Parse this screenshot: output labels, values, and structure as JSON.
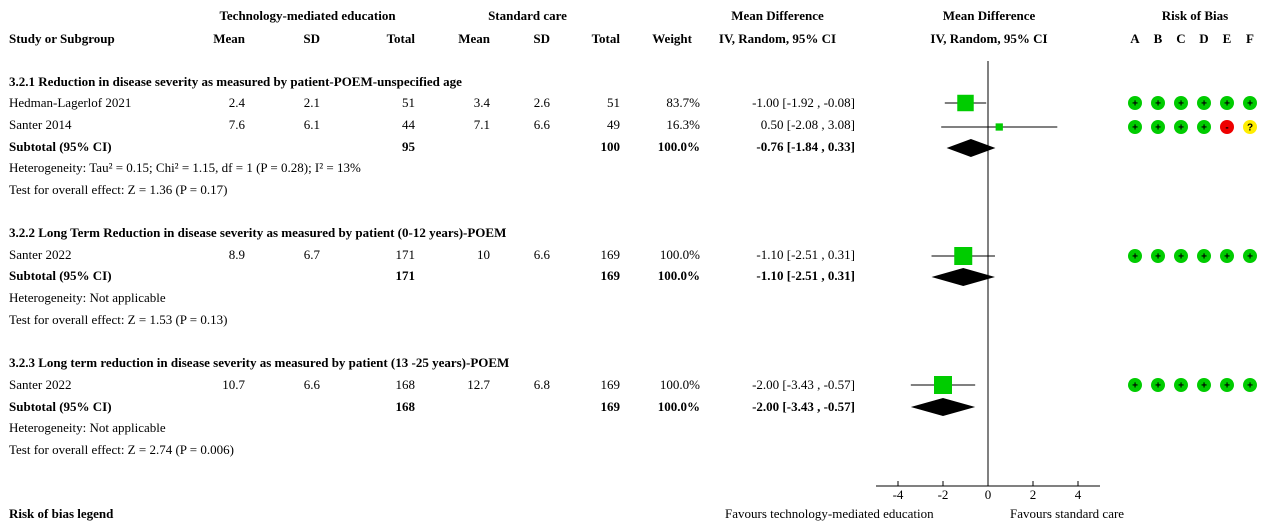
{
  "headers": {
    "study": "Study or Subgroup",
    "group1": "Technology-mediated education",
    "group2": "Standard care",
    "mean": "Mean",
    "sd": "SD",
    "total": "Total",
    "weight": "Weight",
    "md_title": "Mean Difference",
    "md_method": "IV, Random, 95% CI",
    "plot_title": "Mean Difference",
    "plot_method": "IV, Random, 95% CI",
    "rob_title": "Risk of Bias",
    "rob_letters": [
      "A",
      "B",
      "C",
      "D",
      "E",
      "F"
    ]
  },
  "subgroups": [
    {
      "title": "3.2.1 Reduction in disease severity as measured by patient-POEM-unspecified age",
      "studies": [
        {
          "name": "Hedman-Lagerlof 2021",
          "m1": "2.4",
          "sd1": "2.1",
          "n1": "51",
          "m2": "3.4",
          "sd2": "2.6",
          "n2": "51",
          "weight": "83.7%",
          "ci_text": "-1.00 [-1.92 , -0.08]",
          "rob": [
            "+",
            "+",
            "+",
            "+",
            "+",
            "+"
          ]
        },
        {
          "name": "Santer 2014",
          "m1": "7.6",
          "sd1": "6.1",
          "n1": "44",
          "m2": "7.1",
          "sd2": "6.6",
          "n2": "49",
          "weight": "16.3%",
          "ci_text": "0.50 [-2.08 , 3.08]",
          "rob": [
            "+",
            "+",
            "+",
            "+",
            "-",
            "?"
          ]
        }
      ],
      "subtotal": {
        "label": "Subtotal (95% CI)",
        "n1": "95",
        "n2": "100",
        "weight": "100.0%",
        "ci_text": "-0.76 [-1.84 , 0.33]"
      },
      "heterogeneity": "Heterogeneity: Tau² = 0.15; Chi² = 1.15, df = 1 (P = 0.28); I² = 13%",
      "overall": "Test for overall effect: Z = 1.36 (P = 0.17)"
    },
    {
      "title": "3.2.2 Long Term Reduction in disease severity as measured by patient (0-12 years)-POEM",
      "studies": [
        {
          "name": "Santer 2022",
          "m1": "8.9",
          "sd1": "6.7",
          "n1": "171",
          "m2": "10",
          "sd2": "6.6",
          "n2": "169",
          "weight": "100.0%",
          "ci_text": "-1.10 [-2.51 , 0.31]",
          "rob": [
            "+",
            "+",
            "+",
            "+",
            "+",
            "+"
          ]
        }
      ],
      "subtotal": {
        "label": "Subtotal (95% CI)",
        "n1": "171",
        "n2": "169",
        "weight": "100.0%",
        "ci_text": "-1.10 [-2.51 , 0.31]"
      },
      "heterogeneity": "Heterogeneity: Not applicable",
      "overall": "Test for overall effect: Z = 1.53 (P = 0.13)"
    },
    {
      "title": "3.2.3 Long term reduction in disease severity as measured by patient (13 -25 years)-POEM",
      "studies": [
        {
          "name": "Santer 2022",
          "m1": "10.7",
          "sd1": "6.6",
          "n1": "168",
          "m2": "12.7",
          "sd2": "6.8",
          "n2": "169",
          "weight": "100.0%",
          "ci_text": "-2.00 [-3.43 , -0.57]",
          "rob": [
            "+",
            "+",
            "+",
            "+",
            "+",
            "+"
          ]
        }
      ],
      "subtotal": {
        "label": "Subtotal (95% CI)",
        "n1": "168",
        "n2": "169",
        "weight": "100.0%",
        "ci_text": "-2.00 [-3.43 , -0.57]"
      },
      "heterogeneity": "Heterogeneity: Not applicable",
      "overall": "Test for overall effect: Z = 2.74 (P = 0.006)"
    }
  ],
  "footer": {
    "legend_title": "Risk of bias legend",
    "favours_left": "Favours technology-mediated education",
    "favours_right": "Favours standard care"
  },
  "colors": {
    "marker": "#00cc00",
    "low_risk": "#00cc00",
    "high_risk": "#ee0000",
    "unclear_risk": "#ffee00",
    "line": "#000000"
  },
  "chart_data": {
    "type": "forest",
    "xlim": [
      -4,
      4
    ],
    "xticks": [
      -4,
      -2,
      0,
      2,
      4
    ],
    "studies": [
      {
        "subgroup": 0,
        "name": "Hedman-Lagerlof 2021",
        "est": -1.0,
        "lo": -1.92,
        "hi": -0.08,
        "weight": 83.7
      },
      {
        "subgroup": 0,
        "name": "Santer 2014",
        "est": 0.5,
        "lo": -2.08,
        "hi": 3.08,
        "weight": 16.3
      },
      {
        "subgroup": 1,
        "name": "Santer 2022",
        "est": -1.1,
        "lo": -2.51,
        "hi": 0.31,
        "weight": 100.0
      },
      {
        "subgroup": 2,
        "name": "Santer 2022",
        "est": -2.0,
        "lo": -3.43,
        "hi": -0.57,
        "weight": 100.0
      }
    ],
    "subtotals": [
      {
        "subgroup": 0,
        "est": -0.76,
        "lo": -1.84,
        "hi": 0.33
      },
      {
        "subgroup": 1,
        "est": -1.1,
        "lo": -2.51,
        "hi": 0.31
      },
      {
        "subgroup": 2,
        "est": -2.0,
        "lo": -3.43,
        "hi": -0.57
      }
    ]
  }
}
